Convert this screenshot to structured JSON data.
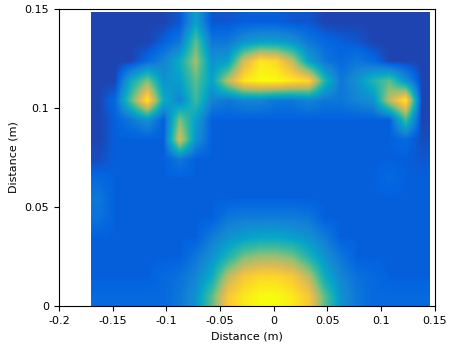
{
  "chart_data": {
    "type": "heatmap",
    "xlabel": "Distance (m)",
    "ylabel": "Distance (m)",
    "xlim": [
      -0.2,
      0.15
    ],
    "ylim": [
      0,
      0.15
    ],
    "xticks": [
      -0.2,
      -0.15,
      -0.1,
      -0.05,
      0,
      0.05,
      0.1,
      0.15
    ],
    "yticks": [
      0,
      0.05,
      0.1,
      0.15
    ],
    "x_extent": [
      -0.17,
      0.145
    ],
    "y_extent": [
      0,
      0.148
    ],
    "clim": [
      0,
      1
    ],
    "cells": [
      [
        0.15,
        0.15,
        0.15,
        0.15,
        0.15,
        0.2,
        0.3,
        0.55,
        0.85,
        0.95,
        1.0,
        1.0,
        0.95,
        0.85,
        0.55,
        0.3,
        0.2,
        0.15,
        0.15,
        0.15,
        0.15
      ],
      [
        0.12,
        0.12,
        0.12,
        0.12,
        0.15,
        0.18,
        0.25,
        0.4,
        0.7,
        0.85,
        0.9,
        0.9,
        0.85,
        0.7,
        0.4,
        0.25,
        0.18,
        0.15,
        0.12,
        0.12,
        0.12
      ],
      [
        0.12,
        0.12,
        0.12,
        0.12,
        0.12,
        0.12,
        0.2,
        0.3,
        0.45,
        0.6,
        0.65,
        0.65,
        0.6,
        0.45,
        0.3,
        0.2,
        0.12,
        0.12,
        0.12,
        0.12,
        0.12
      ],
      [
        0.12,
        0.12,
        0.12,
        0.12,
        0.12,
        0.12,
        0.12,
        0.22,
        0.3,
        0.35,
        0.38,
        0.38,
        0.35,
        0.3,
        0.22,
        0.12,
        0.12,
        0.12,
        0.12,
        0.12,
        0.12
      ],
      [
        0.18,
        0.12,
        0.12,
        0.12,
        0.12,
        0.12,
        0.12,
        0.12,
        0.2,
        0.22,
        0.22,
        0.22,
        0.22,
        0.2,
        0.12,
        0.12,
        0.12,
        0.12,
        0.12,
        0.12,
        0.12
      ],
      [
        0.2,
        0.12,
        0.12,
        0.12,
        0.12,
        0.12,
        0.12,
        0.12,
        0.12,
        0.12,
        0.12,
        0.12,
        0.12,
        0.12,
        0.12,
        0.12,
        0.12,
        0.12,
        0.12,
        0.12,
        0.12
      ],
      [
        0.15,
        0.12,
        0.12,
        0.12,
        0.12,
        0.12,
        0.12,
        0.12,
        0.12,
        0.12,
        0.12,
        0.12,
        0.12,
        0.12,
        0.12,
        0.12,
        0.12,
        0.12,
        0.15,
        0.12,
        0.12
      ],
      [
        0.08,
        0.12,
        0.12,
        0.12,
        0.12,
        0.2,
        0.12,
        0.12,
        0.12,
        0.12,
        0.12,
        0.12,
        0.12,
        0.12,
        0.12,
        0.12,
        0.12,
        0.12,
        0.12,
        0.12,
        0.1
      ],
      [
        0.06,
        0.12,
        0.12,
        0.12,
        0.12,
        0.75,
        0.3,
        0.12,
        0.12,
        0.12,
        0.12,
        0.12,
        0.12,
        0.12,
        0.12,
        0.12,
        0.12,
        0.12,
        0.12,
        0.15,
        0.08
      ],
      [
        0.06,
        0.12,
        0.2,
        0.3,
        0.12,
        0.6,
        0.35,
        0.12,
        0.12,
        0.12,
        0.12,
        0.12,
        0.12,
        0.12,
        0.12,
        0.12,
        0.12,
        0.12,
        0.12,
        0.5,
        0.06
      ],
      [
        0.06,
        0.15,
        0.55,
        0.95,
        0.4,
        0.25,
        0.5,
        0.25,
        0.2,
        0.25,
        0.25,
        0.2,
        0.2,
        0.25,
        0.2,
        0.2,
        0.25,
        0.3,
        0.7,
        0.95,
        0.06
      ],
      [
        0.06,
        0.06,
        0.4,
        0.6,
        0.3,
        0.35,
        0.55,
        0.35,
        0.7,
        0.95,
        1.0,
        1.0,
        0.95,
        0.9,
        0.45,
        0.2,
        0.3,
        0.45,
        0.55,
        0.3,
        0.06
      ],
      [
        0.06,
        0.06,
        0.06,
        0.15,
        0.25,
        0.4,
        0.65,
        0.3,
        0.35,
        0.75,
        0.95,
        0.9,
        0.7,
        0.35,
        0.2,
        0.15,
        0.2,
        0.15,
        0.06,
        0.06,
        0.06
      ],
      [
        0.06,
        0.06,
        0.06,
        0.06,
        0.12,
        0.2,
        0.55,
        0.2,
        0.2,
        0.3,
        0.35,
        0.35,
        0.3,
        0.2,
        0.15,
        0.12,
        0.1,
        0.06,
        0.06,
        0.06,
        0.06
      ],
      [
        0.06,
        0.06,
        0.06,
        0.06,
        0.06,
        0.1,
        0.35,
        0.1,
        0.1,
        0.12,
        0.12,
        0.12,
        0.1,
        0.1,
        0.06,
        0.06,
        0.06,
        0.06,
        0.06,
        0.06,
        0.06
      ]
    ]
  }
}
